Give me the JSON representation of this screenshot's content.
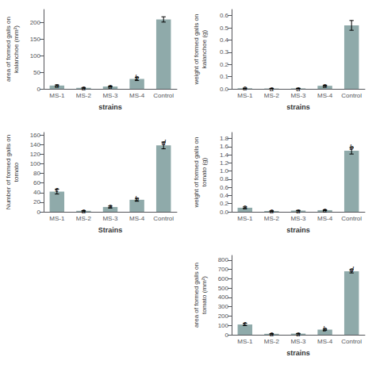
{
  "chart_data": [
    {
      "type": "bar",
      "categories": [
        "MS-1",
        "MS-2",
        "MS-3",
        "MS-4",
        "Control"
      ],
      "color": "#8faaaa",
      "ylabel": "area of formed galls on\nkalanchoe (mm²)",
      "xlabel": "strains",
      "values": [
        10,
        3,
        7,
        30,
        210
      ],
      "errors": [
        2,
        1,
        1.5,
        5,
        8
      ],
      "annotations": [
        "a",
        "a",
        "a",
        "b",
        null
      ],
      "ylim": [
        0,
        240
      ],
      "yticks": [
        0,
        50,
        100,
        150,
        200
      ],
      "grid": false
    },
    {
      "type": "bar",
      "categories": [
        "MS-1",
        "MS-2",
        "MS-3",
        "MS-4",
        "Control"
      ],
      "color": "#8faaaa",
      "ylabel": "weight of formed galls on\nkalanchoe (g)",
      "xlabel": "strains",
      "values": [
        0.005,
        0.003,
        0.004,
        0.025,
        0.52
      ],
      "errors": [
        0.002,
        0.001,
        0.001,
        0.005,
        0.04
      ],
      "annotations": [
        "a",
        "a",
        "a",
        "a",
        null
      ],
      "ylim": [
        0,
        0.65
      ],
      "yticks": [
        {
          "value": 0,
          "label": "0.0"
        },
        0.1,
        0.2,
        0.3,
        0.4,
        0.5,
        0.6
      ],
      "grid": false
    },
    {
      "type": "bar",
      "categories": [
        "MS-1",
        "MS-2",
        "MS-3",
        "MS-4",
        "Control"
      ],
      "color": "#8faaaa",
      "ylabel": "Number of formed galls on\ntomato",
      "xlabel": "Strains",
      "values": [
        42,
        2,
        10,
        25,
        138
      ],
      "errors": [
        5,
        0.5,
        2,
        3,
        7
      ],
      "annotations": [
        "c",
        "a",
        "a",
        "b",
        "d"
      ],
      "ylim": [
        0,
        165
      ],
      "yticks": [
        0,
        20,
        40,
        60,
        80,
        100,
        120,
        140,
        160
      ],
      "grid": false
    },
    {
      "type": "bar",
      "categories": [
        "MS-1",
        "MS-2",
        "MS-3",
        "MS-4",
        "Control"
      ],
      "color": "#8faaaa",
      "ylabel": "weight of formed galls on\ntomato (g)",
      "xlabel": "strains",
      "values": [
        0.1,
        0.02,
        0.03,
        0.04,
        1.5
      ],
      "errors": [
        0.02,
        0.005,
        0.005,
        0.008,
        0.08
      ],
      "annotations": [
        "a",
        "a",
        "a",
        "a",
        "b"
      ],
      "ylim": [
        0,
        1.95
      ],
      "yticks": [
        {
          "value": 0,
          "label": "0.0"
        },
        0.2,
        0.4,
        0.6,
        0.8,
        {
          "value": 1,
          "label": "1.0"
        },
        1.2,
        1.4,
        1.6,
        1.8
      ],
      "grid": false
    },
    {
      "type": "bar",
      "categories": [
        "MS-1",
        "MS-2",
        "MS-3",
        "MS-4",
        "Control"
      ],
      "color": "#8faaaa",
      "ylabel": "area of formed galls on\ntomato (mm²)",
      "xlabel": "strains",
      "values": [
        110,
        10,
        12,
        55,
        680
      ],
      "errors": [
        12,
        2,
        2,
        6,
        18
      ],
      "annotations": [
        "c",
        "a",
        "a",
        "b",
        "d"
      ],
      "ylim": [
        0,
        850
      ],
      "yticks": [
        0,
        100,
        200,
        300,
        400,
        500,
        600,
        700,
        800
      ],
      "grid": false
    }
  ]
}
